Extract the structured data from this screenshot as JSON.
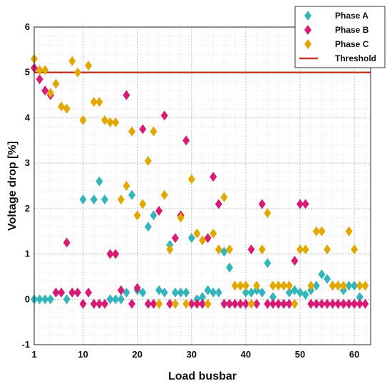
{
  "chart_data": {
    "type": "scatter",
    "xlabel": "Load busbar",
    "ylabel": "Voltage drop [%]",
    "xlim": [
      1,
      63
    ],
    "ylim": [
      -1,
      6
    ],
    "xticks": [
      1,
      10,
      20,
      30,
      40,
      50,
      60
    ],
    "yticks": [
      -1,
      0,
      1,
      2,
      3,
      4,
      5,
      6
    ],
    "grid": true,
    "legend_position": "top-right",
    "threshold": {
      "name": "Threshold",
      "value": 5,
      "color": "#c0392b"
    },
    "series": [
      {
        "name": "Phase A",
        "color": "#33b5bb",
        "points": [
          [
            1,
            0
          ],
          [
            2,
            0
          ],
          [
            3,
            0
          ],
          [
            4,
            0
          ],
          [
            7,
            0
          ],
          [
            10,
            2.2
          ],
          [
            12,
            2.2
          ],
          [
            13,
            2.6
          ],
          [
            14,
            2.2
          ],
          [
            15,
            0
          ],
          [
            16,
            0
          ],
          [
            17,
            0
          ],
          [
            18,
            0.15
          ],
          [
            19,
            2.3
          ],
          [
            20,
            0.2
          ],
          [
            21,
            0.15
          ],
          [
            22,
            1.6
          ],
          [
            23,
            1.85
          ],
          [
            24,
            0.2
          ],
          [
            25,
            0.15
          ],
          [
            26,
            1.2
          ],
          [
            27,
            0.15
          ],
          [
            28,
            0.15
          ],
          [
            29,
            0.15
          ],
          [
            30,
            1.35
          ],
          [
            31,
            0
          ],
          [
            32,
            0.05
          ],
          [
            33,
            0.2
          ],
          [
            34,
            0.15
          ],
          [
            35,
            0.15
          ],
          [
            36,
            1.05
          ],
          [
            37,
            0.7
          ],
          [
            40,
            0.15
          ],
          [
            41,
            0.15
          ],
          [
            42,
            0.2
          ],
          [
            43,
            0.15
          ],
          [
            44,
            0.8
          ],
          [
            45,
            0.05
          ],
          [
            48,
            0.15
          ],
          [
            49,
            0.2
          ],
          [
            50,
            0.15
          ],
          [
            51,
            0.1
          ],
          [
            52,
            0.2
          ],
          [
            53,
            0.3
          ],
          [
            54,
            0.55
          ],
          [
            55,
            0.45
          ],
          [
            56,
            0.3
          ],
          [
            57,
            0.3
          ],
          [
            58,
            0.2
          ],
          [
            59,
            0.3
          ],
          [
            60,
            0.3
          ],
          [
            61,
            0.05
          ]
        ]
      },
      {
        "name": "Phase B",
        "color": "#d81b75",
        "points": [
          [
            1,
            5.1
          ],
          [
            2,
            4.85
          ],
          [
            3,
            4.6
          ],
          [
            4,
            4.5
          ],
          [
            5,
            0.15
          ],
          [
            6,
            0.15
          ],
          [
            7,
            1.25
          ],
          [
            8,
            0.15
          ],
          [
            9,
            0.15
          ],
          [
            10,
            -0.1
          ],
          [
            11,
            0.15
          ],
          [
            12,
            -0.1
          ],
          [
            13,
            -0.1
          ],
          [
            14,
            -0.1
          ],
          [
            15,
            1
          ],
          [
            16,
            1
          ],
          [
            17,
            0.2
          ],
          [
            18,
            4.5
          ],
          [
            19,
            -0.1
          ],
          [
            20,
            0.25
          ],
          [
            21,
            3.75
          ],
          [
            22,
            -0.1
          ],
          [
            23,
            -0.1
          ],
          [
            24,
            1.95
          ],
          [
            25,
            4.05
          ],
          [
            26,
            -0.1
          ],
          [
            27,
            1.35
          ],
          [
            28,
            1.85
          ],
          [
            29,
            3.5
          ],
          [
            30,
            -0.1
          ],
          [
            31,
            -0.1
          ],
          [
            32,
            -0.1
          ],
          [
            33,
            1.35
          ],
          [
            34,
            2.7
          ],
          [
            35,
            2.1
          ],
          [
            36,
            -0.1
          ],
          [
            37,
            -0.1
          ],
          [
            38,
            -0.1
          ],
          [
            39,
            -0.1
          ],
          [
            40,
            -0.1
          ],
          [
            41,
            1.1
          ],
          [
            42,
            -0.1
          ],
          [
            43,
            2.1
          ],
          [
            44,
            -0.1
          ],
          [
            45,
            -0.1
          ],
          [
            46,
            -0.1
          ],
          [
            47,
            -0.1
          ],
          [
            48,
            -0.1
          ],
          [
            49,
            0.85
          ],
          [
            50,
            2.1
          ],
          [
            51,
            2.1
          ],
          [
            52,
            -0.1
          ],
          [
            53,
            -0.1
          ],
          [
            54,
            -0.1
          ],
          [
            55,
            -0.1
          ],
          [
            56,
            -0.1
          ],
          [
            57,
            -0.1
          ],
          [
            58,
            -0.1
          ],
          [
            59,
            -0.1
          ],
          [
            60,
            -0.1
          ],
          [
            61,
            -0.1
          ],
          [
            62,
            -0.1
          ]
        ]
      },
      {
        "name": "Phase C",
        "color": "#e1a800",
        "points": [
          [
            1,
            5.3
          ],
          [
            2,
            5.05
          ],
          [
            3,
            5.05
          ],
          [
            4,
            4.55
          ],
          [
            5,
            4.75
          ],
          [
            6,
            4.25
          ],
          [
            7,
            4.2
          ],
          [
            8,
            5.25
          ],
          [
            9,
            5
          ],
          [
            10,
            3.95
          ],
          [
            11,
            5.15
          ],
          [
            12,
            4.35
          ],
          [
            13,
            4.35
          ],
          [
            14,
            3.95
          ],
          [
            15,
            3.9
          ],
          [
            16,
            3.9
          ],
          [
            17,
            2.2
          ],
          [
            18,
            2.5
          ],
          [
            19,
            3.7
          ],
          [
            20,
            1.85
          ],
          [
            21,
            2.1
          ],
          [
            22,
            3.05
          ],
          [
            23,
            3.7
          ],
          [
            24,
            -0.1
          ],
          [
            25,
            2.3
          ],
          [
            26,
            1.1
          ],
          [
            27,
            -0.1
          ],
          [
            28,
            1.8
          ],
          [
            29,
            -0.1
          ],
          [
            30,
            2.65
          ],
          [
            31,
            1.45
          ],
          [
            32,
            1.3
          ],
          [
            33,
            -0.1
          ],
          [
            34,
            1.45
          ],
          [
            35,
            1.1
          ],
          [
            36,
            2.25
          ],
          [
            37,
            1.1
          ],
          [
            38,
            0.3
          ],
          [
            39,
            0.3
          ],
          [
            40,
            0.3
          ],
          [
            41,
            -0.1
          ],
          [
            42,
            0.3
          ],
          [
            43,
            1.1
          ],
          [
            44,
            1.9
          ],
          [
            45,
            0.3
          ],
          [
            46,
            0.3
          ],
          [
            47,
            0.3
          ],
          [
            48,
            0.3
          ],
          [
            49,
            -0.1
          ],
          [
            50,
            1.1
          ],
          [
            51,
            1.1
          ],
          [
            52,
            0.3
          ],
          [
            53,
            1.5
          ],
          [
            54,
            1.5
          ],
          [
            55,
            1.1
          ],
          [
            56,
            0.3
          ],
          [
            57,
            0.3
          ],
          [
            58,
            0.3
          ],
          [
            59,
            1.5
          ],
          [
            60,
            1.1
          ],
          [
            61,
            0.3
          ],
          [
            62,
            0.3
          ]
        ]
      }
    ]
  }
}
